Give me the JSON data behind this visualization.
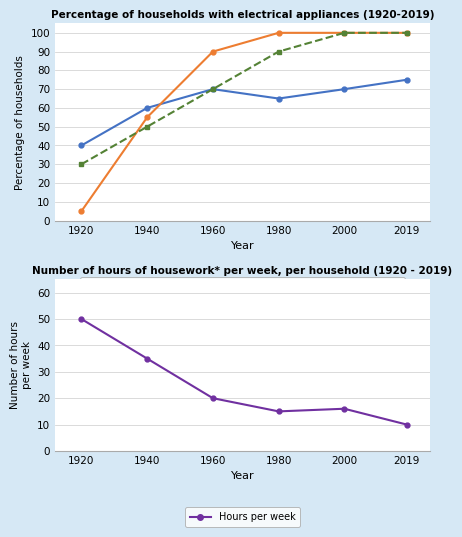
{
  "years": [
    1920,
    1940,
    1960,
    1980,
    2000,
    2019
  ],
  "washing_machine": [
    40,
    60,
    70,
    65,
    70,
    75
  ],
  "refrigerator": [
    5,
    55,
    90,
    100,
    100,
    100
  ],
  "vacuum_cleaner": [
    30,
    50,
    70,
    90,
    100,
    100
  ],
  "hours_per_week": [
    50,
    35,
    20,
    15,
    16,
    10
  ],
  "title1": "Percentage of households with electrical appliances (1920-2019)",
  "title2": "Number of hours of housework* per week, per household (1920 - 2019)",
  "ylabel1": "Percentage of households",
  "ylabel2": "Number of hours\nper week",
  "xlabel": "Year",
  "ylim1": [
    0,
    105
  ],
  "ylim2": [
    0,
    65
  ],
  "yticks1": [
    0,
    10,
    20,
    30,
    40,
    50,
    60,
    70,
    80,
    90,
    100
  ],
  "yticks2": [
    0,
    10,
    20,
    30,
    40,
    50,
    60
  ],
  "washing_machine_color": "#4472C4",
  "refrigerator_color": "#ED7D31",
  "vacuum_cleaner_color": "#548235",
  "hours_color": "#7030A0",
  "bg_color": "#D6E8F5",
  "plot_bg_color": "#FFFFFF"
}
